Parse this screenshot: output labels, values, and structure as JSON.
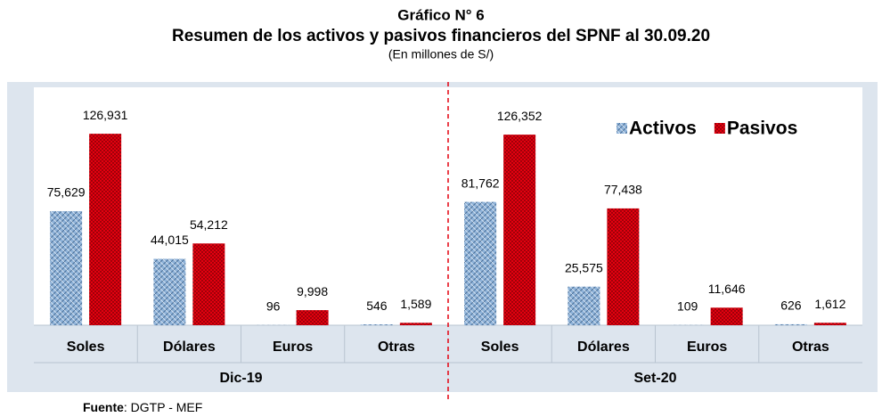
{
  "chart_data": {
    "type": "bar",
    "title": "Gráfico N° 6",
    "subtitle": "Resumen de los activos y pasivos financieros del SPNF al 30.09.20",
    "unit_note": "(En millones de S/)",
    "categories": [
      "Soles",
      "Dólares",
      "Euros",
      "Otras",
      "Soles",
      "Dólares",
      "Euros",
      "Otras"
    ],
    "groups": [
      "Dic-19",
      "Set-20"
    ],
    "series": [
      {
        "name": "Activos",
        "color": "#8fb3d9",
        "values": [
          75629,
          44015,
          96,
          546,
          81762,
          25575,
          109,
          626
        ],
        "value_labels": [
          "75,629",
          "44,015",
          "96",
          "546",
          "81,762",
          "25,575",
          "109",
          "626"
        ]
      },
      {
        "name": "Pasivos",
        "color": "#e3000f",
        "values": [
          126931,
          54212,
          9998,
          1589,
          126352,
          77438,
          11646,
          1612
        ],
        "value_labels": [
          "126,931",
          "54,212",
          "9,998",
          "1,589",
          "126,352",
          "77,438",
          "11,646",
          "1,612"
        ]
      }
    ],
    "ylim": [
      0,
      140000
    ],
    "legend": "upper right",
    "source": {
      "label": "Fuente",
      "text": ": DGTP - MEF"
    }
  }
}
